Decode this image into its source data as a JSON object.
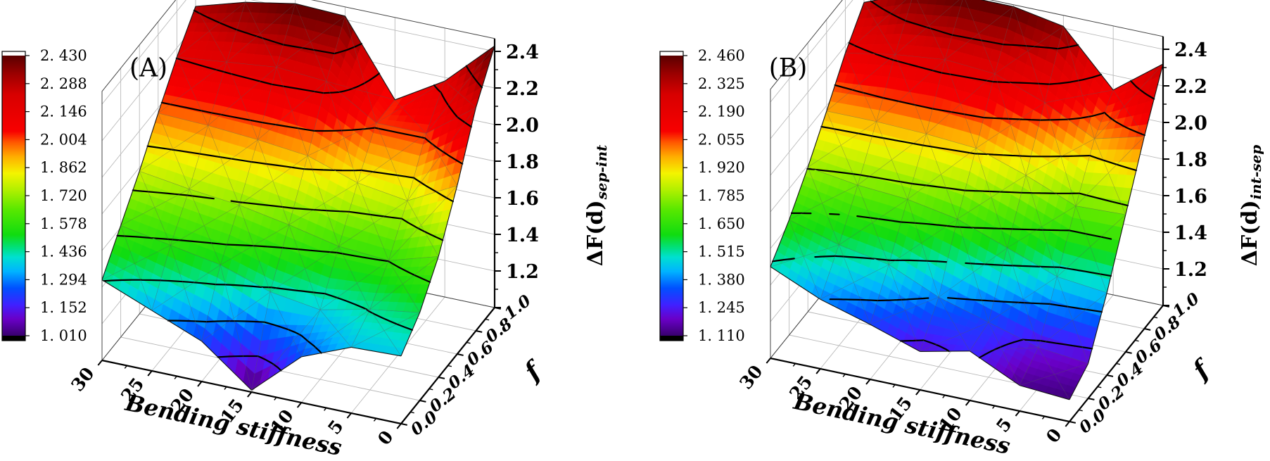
{
  "figure_type": "dual-3d-colormap-surface-plots",
  "contour_color": "#000000",
  "colormap": [
    [
      0.0,
      "#38006e"
    ],
    [
      0.06,
      "#6a00c8"
    ],
    [
      0.11,
      "#4020ff"
    ],
    [
      0.17,
      "#0050ff"
    ],
    [
      0.23,
      "#00b4ff"
    ],
    [
      0.28,
      "#00e0d0"
    ],
    [
      0.31,
      "#00e088"
    ],
    [
      0.36,
      "#10dc10"
    ],
    [
      0.45,
      "#58e800"
    ],
    [
      0.52,
      "#b0f000"
    ],
    [
      0.58,
      "#f4f400"
    ],
    [
      0.64,
      "#ffac00"
    ],
    [
      0.69,
      "#ff5800"
    ],
    [
      0.73,
      "#f80000"
    ],
    [
      0.86,
      "#d80000"
    ],
    [
      0.93,
      "#a00000"
    ],
    [
      1.0,
      "#5a0000"
    ]
  ],
  "chart_data": [
    {
      "type": "surface3d",
      "panel_label": "(A)",
      "x_axis": {
        "title": "Bending stiffness",
        "values": [
          30,
          25,
          20,
          15,
          10,
          5,
          0
        ],
        "tick_labels": [
          "30",
          "25",
          "20",
          "15",
          "10",
          "5",
          "0"
        ]
      },
      "y_axis": {
        "title": "f",
        "values": [
          0.0,
          0.2,
          0.4,
          0.6,
          0.8,
          1.0
        ],
        "tick_labels": [
          "0.0",
          "0.2",
          "0.4",
          "0.6",
          "0.8",
          "1.0"
        ]
      },
      "z_axis": {
        "title_main": "ΔF(d)",
        "title_sub": "sep-int",
        "tick_labels": [
          "1.2",
          "1.4",
          "1.6",
          "1.8",
          "2.0",
          "2.2",
          "2.4"
        ],
        "range": [
          1.0,
          2.47
        ]
      },
      "colorbar": {
        "vmin": 1.01,
        "vmax": 2.43,
        "tick_labels": [
          "2. 430",
          "2. 288",
          "2. 146",
          "2. 004",
          "1. 862",
          "1. 720",
          "1. 578",
          "1. 436",
          "1. 294",
          "1. 152",
          "1. 010"
        ],
        "tick_values": [
          2.43,
          2.288,
          2.146,
          2.004,
          1.862,
          1.72,
          1.578,
          1.436,
          1.294,
          1.152,
          1.01
        ]
      },
      "surface": {
        "bending": [
          30,
          25,
          20,
          15,
          10,
          5,
          0
        ],
        "f": [
          0.0,
          0.2,
          0.4,
          0.6,
          0.8,
          1.0
        ],
        "z_rows_by_bending": [
          [
            1.44,
            1.61,
            1.78,
            1.97,
            2.15,
            2.3
          ],
          [
            1.33,
            1.56,
            1.74,
            1.96,
            2.18,
            2.38
          ],
          [
            1.22,
            1.51,
            1.71,
            1.94,
            2.21,
            2.43
          ],
          [
            1.01,
            1.42,
            1.66,
            1.91,
            2.19,
            2.42
          ],
          [
            1.25,
            1.38,
            1.6,
            1.82,
            2.02,
            2.02
          ],
          [
            1.36,
            1.44,
            1.58,
            1.78,
            2.02,
            2.18
          ],
          [
            1.37,
            1.48,
            1.66,
            1.92,
            2.22,
            2.43
          ]
        ]
      }
    },
    {
      "type": "surface3d",
      "panel_label": "(B)",
      "x_axis": {
        "title": "Bending stiffness",
        "values": [
          30,
          25,
          20,
          15,
          10,
          5,
          0
        ],
        "tick_labels": [
          "30",
          "25",
          "20",
          "15",
          "10",
          "5",
          "0"
        ]
      },
      "y_axis": {
        "title": "f",
        "values": [
          0.0,
          0.2,
          0.4,
          0.6,
          0.8,
          1.0
        ],
        "tick_labels": [
          "0.0",
          "0.2",
          "0.4",
          "0.6",
          "0.8",
          "1.0"
        ]
      },
      "z_axis": {
        "title_main": "ΔF(d)",
        "title_sub": "int-sep",
        "tick_labels": [
          "1.2",
          "1.4",
          "1.6",
          "1.8",
          "2.0",
          "2.2",
          "2.4"
        ],
        "range": [
          1.0,
          2.47
        ]
      },
      "colorbar": {
        "vmin": 1.11,
        "vmax": 2.46,
        "tick_labels": [
          "2. 460",
          "2. 325",
          "2. 190",
          "2. 055",
          "1. 920",
          "1. 785",
          "1. 650",
          "1. 515",
          "1. 380",
          "1. 245",
          "1. 110"
        ],
        "tick_values": [
          2.46,
          2.325,
          2.19,
          2.055,
          1.92,
          1.785,
          1.65,
          1.515,
          1.38,
          1.245,
          1.11
        ]
      },
      "surface": {
        "bending": [
          30,
          25,
          20,
          15,
          10,
          5,
          0
        ],
        "f": [
          0.0,
          0.2,
          0.4,
          0.6,
          0.8,
          1.0
        ],
        "z_rows_by_bending": [
          [
            1.5,
            1.63,
            1.79,
            1.97,
            2.16,
            2.31
          ],
          [
            1.38,
            1.55,
            1.75,
            1.97,
            2.21,
            2.42
          ],
          [
            1.3,
            1.5,
            1.73,
            1.96,
            2.24,
            2.46
          ],
          [
            1.21,
            1.38,
            1.68,
            1.94,
            2.22,
            2.46
          ],
          [
            1.27,
            1.3,
            1.58,
            1.85,
            2.12,
            2.41
          ],
          [
            1.14,
            1.22,
            1.48,
            1.74,
            1.98,
            2.12
          ],
          [
            1.12,
            1.19,
            1.45,
            1.75,
            2.05,
            2.32
          ]
        ]
      }
    }
  ]
}
